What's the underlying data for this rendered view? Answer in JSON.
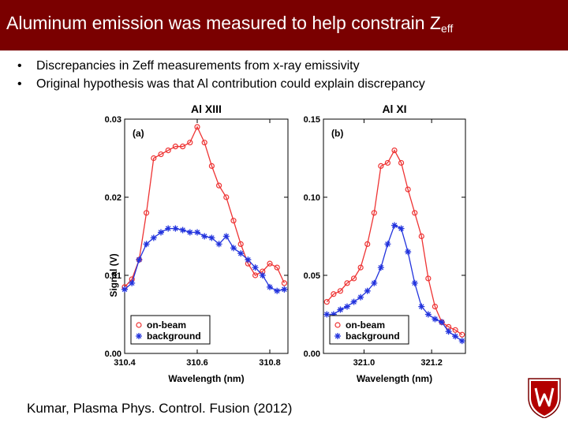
{
  "slide": {
    "title_main": "Aluminum emission was measured to help constrain Z",
    "title_sub": "eff",
    "bullets": [
      "Discrepancies in Zeff measurements from x-ray emissivity",
      "Original hypothesis was that Al contribution could explain discrepancy"
    ],
    "citation": "Kumar, Plasma Phys. Control. Fusion (2012)",
    "colors": {
      "title_bar": "#7a0000",
      "on_beam": "#ee3333",
      "background": "#2233dd"
    },
    "logo_icon": "university-crest-icon"
  },
  "chart_data": [
    {
      "type": "line",
      "title": "Al XIII",
      "panel_label": "(a)",
      "xlabel": "Wavelength (nm)",
      "ylabel": "Signal (V)",
      "xlim": [
        310.4,
        310.85
      ],
      "ylim": [
        0,
        0.03
      ],
      "xticks": [
        310.4,
        310.6,
        310.8
      ],
      "xtick_labels": [
        "310.4",
        "310.6",
        "310.8"
      ],
      "yticks": [
        0,
        0.01,
        0.02,
        0.03
      ],
      "ytick_labels": [
        "0.00",
        "0.01",
        "0.02",
        "0.03"
      ],
      "legend": "bottom-left",
      "series": [
        {
          "name": "on-beam",
          "marker": "circle",
          "x": [
            310.4,
            310.42,
            310.44,
            310.46,
            310.48,
            310.5,
            310.52,
            310.54,
            310.56,
            310.58,
            310.6,
            310.62,
            310.64,
            310.66,
            310.68,
            310.7,
            310.72,
            310.74,
            310.76,
            310.78,
            310.8,
            310.82,
            310.84
          ],
          "y": [
            0.0085,
            0.0095,
            0.012,
            0.018,
            0.025,
            0.0255,
            0.026,
            0.0265,
            0.0265,
            0.027,
            0.029,
            0.027,
            0.024,
            0.0215,
            0.02,
            0.017,
            0.014,
            0.0115,
            0.01,
            0.0105,
            0.0115,
            0.011,
            0.009
          ]
        },
        {
          "name": "background",
          "marker": "star",
          "x": [
            310.4,
            310.42,
            310.44,
            310.46,
            310.48,
            310.5,
            310.52,
            310.54,
            310.56,
            310.58,
            310.6,
            310.62,
            310.64,
            310.66,
            310.68,
            310.7,
            310.72,
            310.74,
            310.76,
            310.78,
            310.8,
            310.82,
            310.84
          ],
          "y": [
            0.0082,
            0.009,
            0.012,
            0.014,
            0.0148,
            0.0155,
            0.016,
            0.016,
            0.0158,
            0.0155,
            0.0155,
            0.015,
            0.0148,
            0.014,
            0.015,
            0.0135,
            0.0128,
            0.012,
            0.011,
            0.01,
            0.0085,
            0.008,
            0.0082
          ]
        }
      ]
    },
    {
      "type": "line",
      "title": "Al XI",
      "panel_label": "(b)",
      "xlabel": "Wavelength (nm)",
      "ylabel": "",
      "xlim": [
        320.88,
        321.3
      ],
      "ylim": [
        0,
        0.15
      ],
      "xticks": [
        321.0,
        321.2
      ],
      "xtick_labels": [
        "321.0",
        "321.2"
      ],
      "yticks": [
        0,
        0.05,
        0.1,
        0.15
      ],
      "ytick_labels": [
        "0.00",
        "0.05",
        "0.10",
        "0.15"
      ],
      "legend": "bottom-left",
      "series": [
        {
          "name": "on-beam",
          "marker": "circle",
          "x": [
            320.89,
            320.91,
            320.93,
            320.95,
            320.97,
            320.99,
            321.01,
            321.03,
            321.05,
            321.07,
            321.09,
            321.11,
            321.13,
            321.15,
            321.17,
            321.19,
            321.21,
            321.23,
            321.25,
            321.27,
            321.29
          ],
          "y": [
            0.033,
            0.038,
            0.04,
            0.045,
            0.048,
            0.055,
            0.07,
            0.09,
            0.12,
            0.122,
            0.13,
            0.122,
            0.105,
            0.09,
            0.075,
            0.048,
            0.03,
            0.02,
            0.017,
            0.015,
            0.012
          ]
        },
        {
          "name": "background",
          "marker": "star",
          "x": [
            320.89,
            320.91,
            320.93,
            320.95,
            320.97,
            320.99,
            321.01,
            321.03,
            321.05,
            321.07,
            321.09,
            321.11,
            321.13,
            321.15,
            321.17,
            321.19,
            321.21,
            321.23,
            321.25,
            321.27,
            321.29
          ],
          "y": [
            0.025,
            0.025,
            0.028,
            0.03,
            0.033,
            0.036,
            0.04,
            0.045,
            0.055,
            0.07,
            0.082,
            0.08,
            0.065,
            0.045,
            0.03,
            0.025,
            0.022,
            0.02,
            0.014,
            0.011,
            0.008
          ]
        }
      ]
    }
  ]
}
